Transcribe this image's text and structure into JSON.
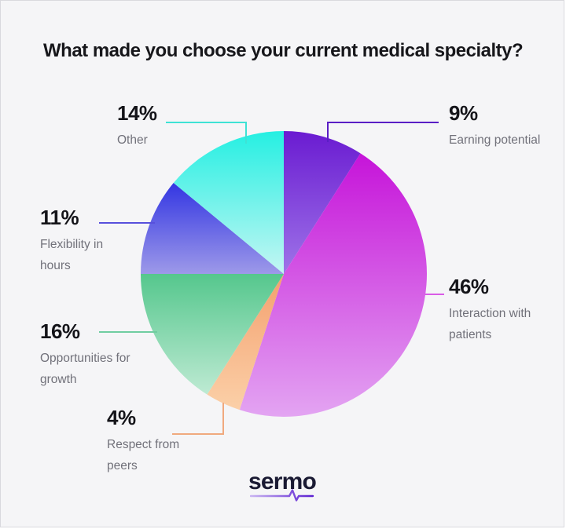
{
  "title": "What made you choose your current medical specialty?",
  "background": "#F5F5F7",
  "chart_data": {
    "type": "pie",
    "title": "What made you choose your current medical specialty?",
    "unit": "%",
    "start_angle_deg": 0,
    "direction": "clockwise",
    "legend_position": "callouts-around-pie",
    "slices": [
      {
        "id": "earning-potential",
        "label": "Earning potential",
        "pct": "9%",
        "value": 9,
        "color_top": "#6A1BD1",
        "color_bottom": "#9E74E8",
        "line_color": "#5A1EC5"
      },
      {
        "id": "interaction-with-patients",
        "label": "Interaction with patients",
        "pct": "46%",
        "value": 46,
        "color_top": "#C614D9",
        "color_bottom": "#E3A4F2",
        "line_color": "#D95CE6"
      },
      {
        "id": "respect-from-peers",
        "label": "Respect from peers",
        "pct": "4%",
        "value": 4,
        "color_top": "#F4A06E",
        "color_bottom": "#FBD0A8",
        "line_color": "#F0A97E"
      },
      {
        "id": "opportunities-for-growth",
        "label": "Opportunities for growth",
        "pct": "16%",
        "value": 16,
        "color_top": "#55C78D",
        "color_bottom": "#BEEAD3",
        "line_color": "#70CDA1"
      },
      {
        "id": "flexibility-in-hours",
        "label": "Flexibility in hours",
        "pct": "11%",
        "value": 11,
        "color_top": "#3336E2",
        "color_bottom": "#9D99E9",
        "line_color": "#5850DC"
      },
      {
        "id": "other",
        "label": "Other",
        "pct": "14%",
        "value": 14,
        "color_top": "#25EFE2",
        "color_bottom": "#C4F6F3",
        "line_color": "#3EE2D5"
      }
    ]
  },
  "brand": {
    "logo_text": "sermo",
    "logo_color": "#1A1A33",
    "pulse_gradient": [
      "#C9B4F2",
      "#5B1FD1"
    ]
  }
}
